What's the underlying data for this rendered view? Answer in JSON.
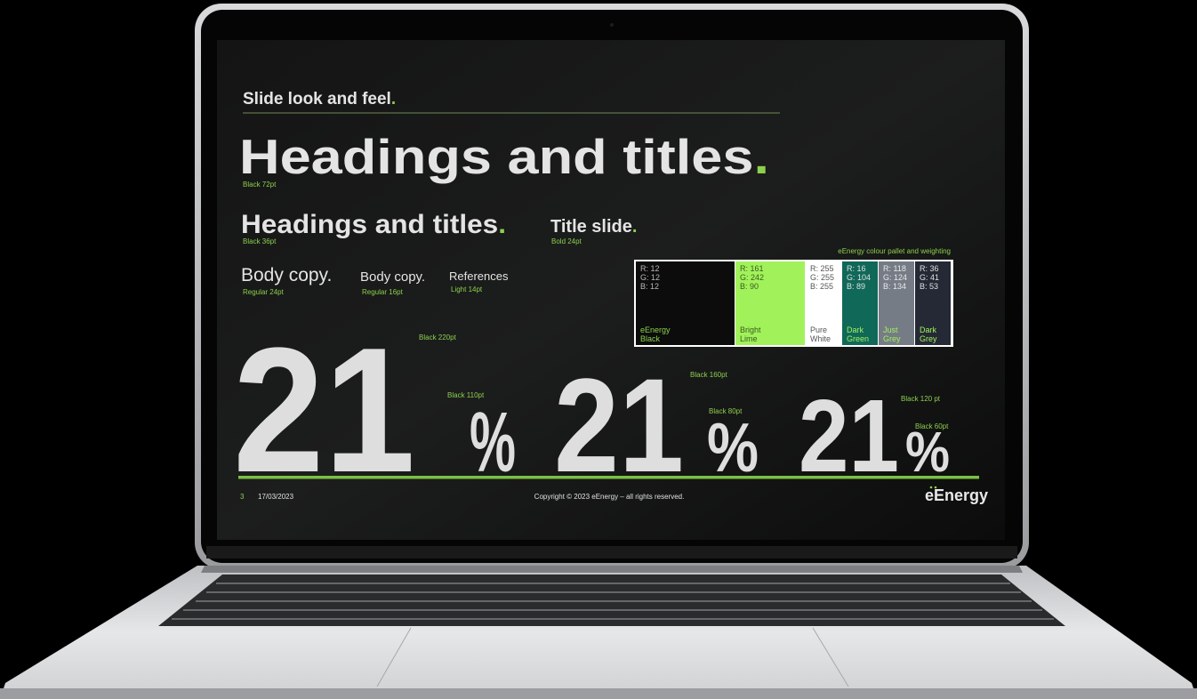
{
  "slide": {
    "section_title": {
      "text": "Slide look and feel",
      "dot": "."
    },
    "heading_large": {
      "text": "Headings and titles",
      "dot": ".",
      "note": "Black 72pt"
    },
    "heading_medium": {
      "text": "Headings and titles",
      "dot": ".",
      "note": "Black 36pt"
    },
    "title_slide": {
      "text": "Title slide",
      "dot": ".",
      "note": "Bold 24pt"
    },
    "body": [
      {
        "text": "Body copy.",
        "note": "Regular 24pt"
      },
      {
        "text": "Body copy.",
        "note": "Regular 16pt"
      },
      {
        "text": "References",
        "note": "Light 14pt"
      }
    ],
    "palette": {
      "caption": "eEnergy colour pallet and weighting",
      "swatches": [
        {
          "rgb": [
            "R: 12",
            "G: 12",
            "B: 12"
          ],
          "name": [
            "eEnergy",
            "Black"
          ],
          "color": "#0c0c0c",
          "text_color": "#b8b8b8",
          "name_color": "#8cd04c"
        },
        {
          "rgb": [
            "R: 161",
            "G: 242",
            "B: 90"
          ],
          "name": [
            "Bright",
            "Lime"
          ],
          "color": "#a1f25a",
          "text_color": "#3a5a20",
          "name_color": "#3a5a20"
        },
        {
          "rgb": [
            "R: 255",
            "G: 255",
            "B: 255"
          ],
          "name": [
            "Pure",
            "White"
          ],
          "color": "#ffffff",
          "text_color": "#555555",
          "name_color": "#555555"
        },
        {
          "rgb": [
            "R: 16",
            "G: 104",
            "B: 89"
          ],
          "name": [
            "Dark",
            "Green"
          ],
          "color": "#106859",
          "text_color": "#e0e0e0",
          "name_color": "#a1f25a"
        },
        {
          "rgb": [
            "R: 118",
            "G: 124",
            "B: 134"
          ],
          "name": [
            "Just",
            "Grey"
          ],
          "color": "#767c86",
          "text_color": "#e8e8e8",
          "name_color": "#a1f25a"
        },
        {
          "rgb": [
            "R: 36",
            "G: 41",
            "B: 53"
          ],
          "name": [
            "Dark",
            "Grey"
          ],
          "color": "#242935",
          "text_color": "#e0e0e0",
          "name_color": "#a1f25a"
        }
      ]
    },
    "numbers": [
      {
        "digits": "21",
        "percent": "%",
        "digits_note": "Black 220pt",
        "percent_note": "Black 110pt"
      },
      {
        "digits": "21",
        "percent": "%",
        "digits_note": "Black 160pt",
        "percent_note": "Black 80pt"
      },
      {
        "digits": "21",
        "percent": "%",
        "digits_note": "Black 120 pt",
        "percent_note": "Black 60pt"
      }
    ],
    "footer": {
      "page": "3",
      "date": "17/03/2023",
      "copyright": "Copyright © 2023 eEnergy – all rights reserved.",
      "logo": "eEnergy"
    }
  }
}
